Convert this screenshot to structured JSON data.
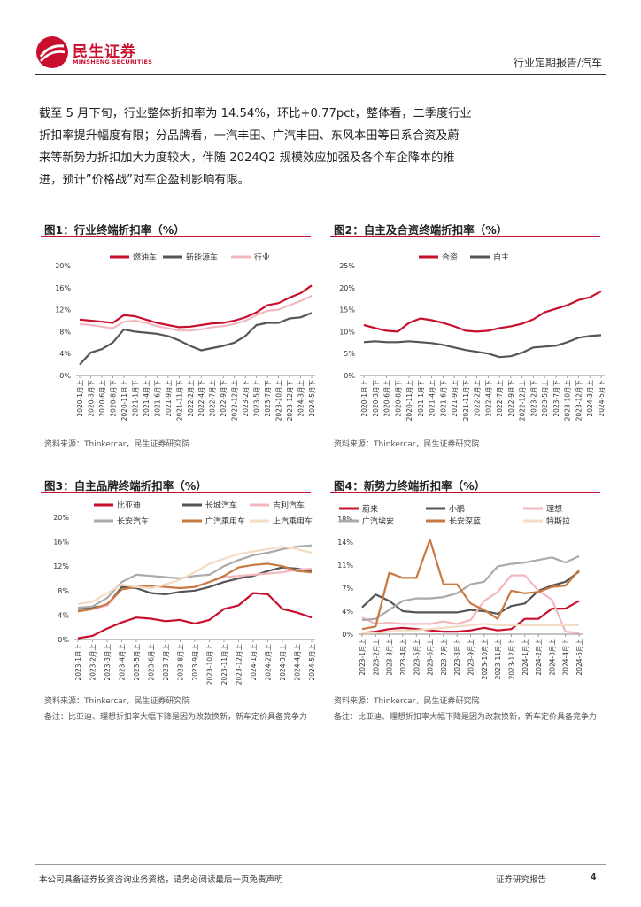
{
  "header": {
    "logo_cn": "民生证券",
    "logo_en": "MINSHENG SECURITIES",
    "report_type": "行业定期报告/汽车"
  },
  "body": {
    "lines": [
      "截至 5 月下旬，行业整体折扣率为 14.54%，环比+0.77pct，整体看，二季度行业",
      "折扣率提升幅度有限；分品牌看，一汽丰田、广汽丰田、东风本田等日系合资及蔚",
      "来等新势力折扣加大力度较大，伴随 2024Q2 规模效应加强及各个车企降本的推",
      "进，预计”价格战”对车企盈利影响有限。"
    ]
  },
  "figures": [
    {
      "title": "图1：行业终端折扣率（%）",
      "source": "资料来源：Thinkercar，民生证券研究院",
      "note": ""
    },
    {
      "title": "图2：自主及合资终端折扣率（%）",
      "source": "资料来源：Thinkercar，民生证券研究院",
      "note": ""
    },
    {
      "title": "图3：自主品牌终端折扣率（%）",
      "source": "资料来源：Thinkercar，民生证券研究院",
      "note": "备注：比亚迪、理想折扣率大幅下降是因为改款换新，新车定价具备竞争力"
    },
    {
      "title": "图4：新势力终端折扣率（%）",
      "source": "资料来源：Thinkercar，民生证券研究院",
      "note": "备注：比亚迪、理想折扣率大幅下降是因为改款换新，新车定价具备竞争力"
    }
  ],
  "chart_data": [
    {
      "type": "line",
      "title": "图1：行业终端折扣率（%）",
      "x": [
        "2020-1月上",
        "2020-3月下",
        "2020-6月上",
        "2020-8月下",
        "2020-11月上",
        "2021-1月下",
        "2021-4月上",
        "2021-6月下",
        "2021-9月上",
        "2021-11月下",
        "2022-2月上",
        "2022-4月下",
        "2022-7月上",
        "2022-9月下",
        "2022-12月上",
        "2023-2月下",
        "2023-5月上",
        "2023-7月下",
        "2023-10月上",
        "2023-12月下",
        "2024-3月上",
        "2024-5月下"
      ],
      "ylim": [
        0,
        20
      ],
      "yticks": [
        "0%",
        "4%",
        "8%",
        "12%",
        "16%",
        "20%"
      ],
      "series": [
        {
          "name": "燃油车",
          "color": "#c8102e",
          "values": [
            10.2,
            10.0,
            9.8,
            9.6,
            11.0,
            10.8,
            10.2,
            9.6,
            9.2,
            8.8,
            8.9,
            9.2,
            9.5,
            9.6,
            10.0,
            10.6,
            11.5,
            12.8,
            13.2,
            14.2,
            15.0,
            16.4
          ]
        },
        {
          "name": "新能源车",
          "color": "#555555",
          "values": [
            2.0,
            4.2,
            4.8,
            6.0,
            8.4,
            8.0,
            7.8,
            7.6,
            7.2,
            6.4,
            5.4,
            4.6,
            5.0,
            5.4,
            6.0,
            7.2,
            9.2,
            9.6,
            9.6,
            10.4,
            10.6,
            11.4
          ]
        },
        {
          "name": "行业",
          "color": "#f2b8c0",
          "values": [
            9.4,
            9.2,
            8.9,
            8.6,
            9.8,
            10.0,
            9.6,
            9.0,
            8.6,
            8.2,
            8.2,
            8.4,
            8.8,
            9.0,
            9.4,
            10.0,
            11.0,
            11.8,
            12.0,
            12.8,
            13.6,
            14.5
          ]
        }
      ]
    },
    {
      "type": "line",
      "title": "图2：自主及合资终端折扣率（%）",
      "x": [
        "2020-1月上",
        "2020-3月下",
        "2020-6月上",
        "2020-8月下",
        "2020-11月上",
        "2021-1月下",
        "2021-4月上",
        "2021-6月下",
        "2021-9月上",
        "2021-11月下",
        "2022-2月上",
        "2022-4月下",
        "2022-7月上",
        "2022-9月下",
        "2022-12月上",
        "2023-2月下",
        "2023-5月上",
        "2023-7月下",
        "2023-10月上",
        "2023-12月下",
        "2024-3月上",
        "2024-5月下"
      ],
      "ylim": [
        0,
        25
      ],
      "yticks": [
        "0%",
        "5%",
        "10%",
        "15%",
        "20%",
        "25%"
      ],
      "series": [
        {
          "name": "合资",
          "color": "#c8102e",
          "values": [
            11.5,
            10.8,
            10.2,
            10.0,
            12.0,
            13.0,
            12.6,
            12.0,
            11.2,
            10.2,
            10.0,
            10.2,
            10.8,
            11.2,
            11.8,
            12.8,
            14.4,
            15.2,
            16.0,
            17.2,
            17.8,
            19.2
          ]
        },
        {
          "name": "自主",
          "color": "#555555",
          "values": [
            7.6,
            7.8,
            7.6,
            7.6,
            7.8,
            7.6,
            7.4,
            7.0,
            6.4,
            5.8,
            5.4,
            5.0,
            4.2,
            4.4,
            5.2,
            6.4,
            6.6,
            6.8,
            7.6,
            8.6,
            9.0,
            9.2
          ]
        }
      ]
    },
    {
      "type": "line",
      "title": "图3：自主品牌终端折扣率（%）",
      "x": [
        "2023-1月上",
        "2023-2月上",
        "2023-3月上",
        "2023-4月上",
        "2023-5月上",
        "2023-6月上",
        "2023-7月上",
        "2023-8月上",
        "2023-9月上",
        "2023-10月上",
        "2023-11月上",
        "2023-12月上",
        "2024-1月上",
        "2024-2月上",
        "2024-3月上",
        "2024-4月上",
        "2024-5月上"
      ],
      "ylim": [
        0,
        20
      ],
      "yticks": [
        "0%",
        "4%",
        "8%",
        "12%",
        "16%",
        "20%"
      ],
      "series": [
        {
          "name": "比亚迪",
          "color": "#c8102e",
          "values": [
            0.2,
            0.6,
            1.8,
            2.8,
            3.6,
            3.4,
            3.0,
            3.2,
            2.6,
            3.2,
            5.0,
            5.6,
            7.6,
            7.4,
            5.0,
            4.4,
            3.6
          ]
        },
        {
          "name": "长城汽车",
          "color": "#555555",
          "values": [
            5.0,
            5.2,
            5.6,
            8.6,
            8.4,
            7.6,
            7.4,
            7.8,
            8.0,
            8.6,
            9.4,
            10.0,
            10.4,
            11.2,
            11.8,
            11.6,
            11.2
          ]
        },
        {
          "name": "吉利汽车",
          "color": "#f2b8c0",
          "values": [
            4.6,
            5.0,
            5.6,
            8.2,
            8.6,
            8.8,
            8.6,
            8.4,
            8.6,
            9.4,
            10.2,
            10.4,
            10.6,
            10.8,
            11.0,
            11.4,
            11.6
          ]
        },
        {
          "name": "长安汽车",
          "color": "#aaaaaa",
          "values": [
            5.2,
            5.4,
            6.8,
            9.4,
            10.6,
            10.4,
            10.2,
            10.0,
            10.4,
            10.6,
            12.0,
            13.0,
            13.8,
            14.2,
            14.8,
            15.2,
            15.4
          ]
        },
        {
          "name": "广汽乘用车",
          "color": "#c87941",
          "values": [
            4.6,
            5.0,
            5.8,
            8.2,
            8.6,
            8.8,
            8.6,
            8.4,
            8.6,
            9.4,
            10.4,
            11.8,
            12.2,
            12.4,
            12.0,
            11.2,
            11.0
          ]
        },
        {
          "name": "上汽乘用车",
          "color": "#f3dcc4",
          "values": [
            5.8,
            6.2,
            7.6,
            9.0,
            8.6,
            8.4,
            9.0,
            9.8,
            11.0,
            12.4,
            13.2,
            14.0,
            14.4,
            14.8,
            15.2,
            14.8,
            14.2
          ]
        }
      ]
    },
    {
      "type": "line",
      "title": "图4：新势力终端折扣率（%）",
      "x": [
        "2023-1月上",
        "2023-2月上",
        "2023-3月上",
        "2023-4月上",
        "2023-5月上",
        "2023-6月上",
        "2023-7月上",
        "2023-8月上",
        "2023-9月上",
        "2023-10月上",
        "2023-11月上",
        "2023-12月上",
        "2024-1月上",
        "2024-2月上",
        "2024-3月上",
        "2024-4月上",
        "2024-5月上"
      ],
      "ylim": [
        0,
        18
      ],
      "yticks": [
        "0%",
        "4%",
        "7%",
        "11%",
        "14%",
        "18%"
      ],
      "series": [
        {
          "name": "蔚来",
          "color": "#c8102e",
          "values": [
            0.2,
            0.4,
            0.8,
            1.0,
            0.8,
            0.6,
            0.4,
            0.4,
            0.6,
            1.0,
            0.6,
            0.8,
            2.4,
            2.4,
            4.0,
            4.0,
            5.2
          ]
        },
        {
          "name": "小鹏",
          "color": "#555555",
          "values": [
            4.2,
            6.2,
            5.2,
            3.6,
            3.4,
            3.4,
            3.4,
            3.4,
            3.8,
            3.6,
            3.2,
            4.4,
            4.8,
            6.8,
            7.6,
            8.2,
            9.8
          ]
        },
        {
          "name": "理想",
          "color": "#f2b8c0",
          "values": [
            2.6,
            1.6,
            1.8,
            1.6,
            1.6,
            1.6,
            2.0,
            1.6,
            2.2,
            5.2,
            6.6,
            9.2,
            9.2,
            6.8,
            5.4,
            0.4,
            0.2
          ]
        },
        {
          "name": "广汽埃安",
          "color": "#aaaaaa",
          "values": [
            2.2,
            2.4,
            3.8,
            5.2,
            5.6,
            5.6,
            5.8,
            6.4,
            7.8,
            8.2,
            10.6,
            11.0,
            11.2,
            11.6,
            12.0,
            11.2,
            12.2
          ]
        },
        {
          "name": "长安深蓝",
          "color": "#c87941",
          "values": [
            0.8,
            1.2,
            9.6,
            8.8,
            8.8,
            14.8,
            7.8,
            7.8,
            4.8,
            3.8,
            2.4,
            6.8,
            6.4,
            6.6,
            7.4,
            7.6,
            10.0
          ]
        },
        {
          "name": "特斯拉",
          "color": "#f3dcc4",
          "values": [
            0.2,
            0.2,
            0.4,
            0.6,
            0.6,
            0.8,
            1.0,
            1.2,
            1.4,
            1.6,
            1.4,
            1.4,
            1.4,
            1.4,
            1.4,
            1.4,
            1.4
          ]
        }
      ]
    }
  ],
  "footer": {
    "left": "本公司具备证券投资咨询业务资格，请务必阅读最后一页免责声明",
    "middle": "证券研究报告",
    "page": "4"
  }
}
